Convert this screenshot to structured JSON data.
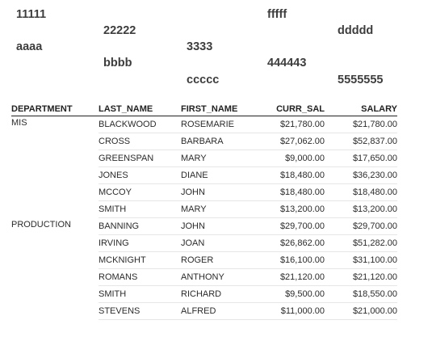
{
  "header_texts": {
    "t1": "11111",
    "t2": "fffff",
    "t3": "22222",
    "t4": "ddddd",
    "t5": "aaaa",
    "t6": "3333",
    "t7": "bbbb",
    "t8": "444443",
    "t9": "ccccc",
    "t10": "5555555"
  },
  "table": {
    "columns": [
      "DEPARTMENT",
      "LAST_NAME",
      "FIRST_NAME",
      "CURR_SAL",
      "SALARY"
    ],
    "groups": [
      {
        "department": "MIS",
        "rows": [
          {
            "last": "BLACKWOOD",
            "first": "ROSEMARIE",
            "curr_sal": "$21,780.00",
            "salary": "$21,780.00"
          },
          {
            "last": "CROSS",
            "first": "BARBARA",
            "curr_sal": "$27,062.00",
            "salary": "$52,837.00"
          },
          {
            "last": "GREENSPAN",
            "first": "MARY",
            "curr_sal": "$9,000.00",
            "salary": "$17,650.00"
          },
          {
            "last": "JONES",
            "first": "DIANE",
            "curr_sal": "$18,480.00",
            "salary": "$36,230.00"
          },
          {
            "last": "MCCOY",
            "first": "JOHN",
            "curr_sal": "$18,480.00",
            "salary": "$18,480.00"
          },
          {
            "last": "SMITH",
            "first": "MARY",
            "curr_sal": "$13,200.00",
            "salary": "$13,200.00"
          }
        ]
      },
      {
        "department": "PRODUCTION",
        "rows": [
          {
            "last": "BANNING",
            "first": "JOHN",
            "curr_sal": "$29,700.00",
            "salary": "$29,700.00"
          },
          {
            "last": "IRVING",
            "first": "JOAN",
            "curr_sal": "$26,862.00",
            "salary": "$51,282.00"
          },
          {
            "last": "MCKNIGHT",
            "first": "ROGER",
            "curr_sal": "$16,100.00",
            "salary": "$31,100.00"
          },
          {
            "last": "ROMANS",
            "first": "ANTHONY",
            "curr_sal": "$21,120.00",
            "salary": "$21,120.00"
          },
          {
            "last": "SMITH",
            "first": "RICHARD",
            "curr_sal": "$9,500.00",
            "salary": "$18,550.00"
          },
          {
            "last": "STEVENS",
            "first": "ALFRED",
            "curr_sal": "$11,000.00",
            "salary": "$21,000.00"
          }
        ]
      }
    ]
  }
}
